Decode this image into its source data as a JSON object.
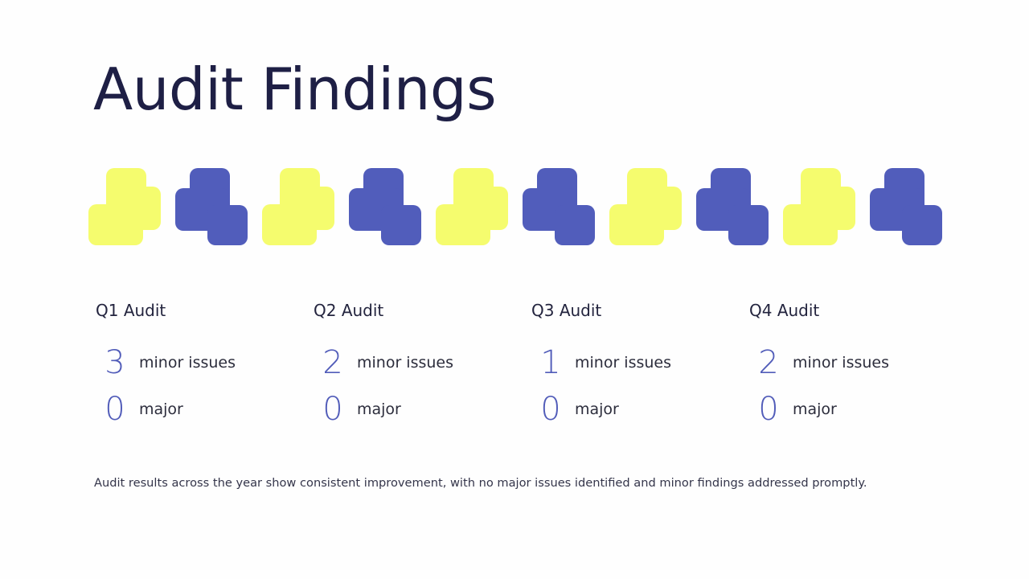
{
  "page": {
    "title": "Audit Findings",
    "colors": {
      "yellow": "#f5fc6e",
      "blue": "#515dbb",
      "title": "#1e1f45",
      "number": "#515cb9"
    }
  },
  "decoration": {
    "shapes": [
      "yellow",
      "blue",
      "yellow",
      "blue",
      "yellow",
      "blue",
      "yellow",
      "blue",
      "yellow",
      "blue"
    ]
  },
  "quarters": [
    {
      "heading": "Q1 Audit",
      "minor_count": "3",
      "minor_label": "minor issues",
      "major_count": "0",
      "major_label": "major"
    },
    {
      "heading": "Q2 Audit",
      "minor_count": "2",
      "minor_label": "minor issues",
      "major_count": "0",
      "major_label": "major"
    },
    {
      "heading": "Q3 Audit",
      "minor_count": "1",
      "minor_label": "minor issues",
      "major_count": "0",
      "major_label": "major"
    },
    {
      "heading": "Q4 Audit",
      "minor_count": "2",
      "minor_label": "minor issues",
      "major_count": "0",
      "major_label": "major"
    }
  ],
  "summary": "Audit results across the year show consistent improvement, with no major issues identified and minor findings addressed promptly."
}
